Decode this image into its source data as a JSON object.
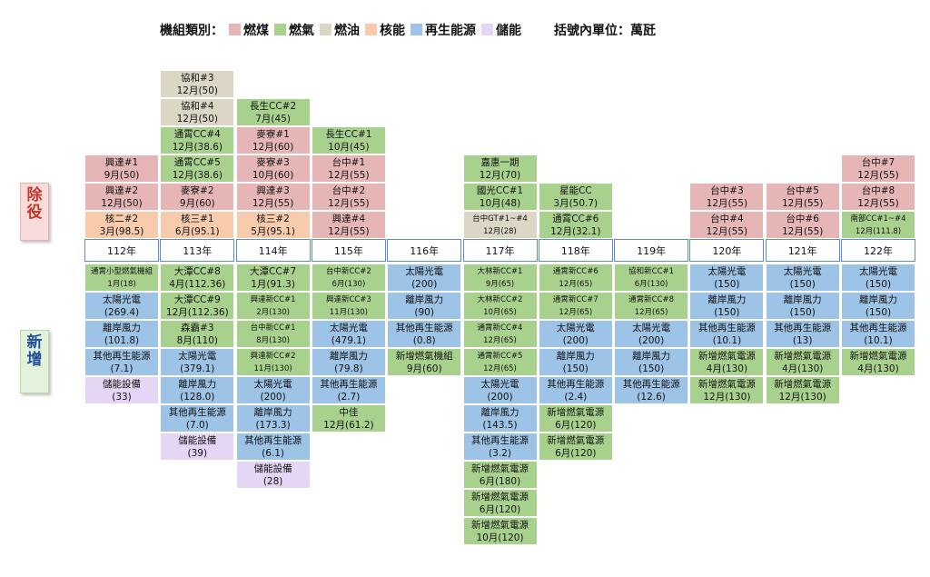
{
  "legend": {
    "title": "機組類別：",
    "items": [
      {
        "key": "coal",
        "label": "燃煤",
        "color": "#e6b6b6"
      },
      {
        "key": "gas",
        "label": "燃氣",
        "color": "#a9d18e"
      },
      {
        "key": "oil",
        "label": "燃油",
        "color": "#dcd6c6"
      },
      {
        "key": "nuclear",
        "label": "核能",
        "color": "#f8cbad"
      },
      {
        "key": "renewable",
        "label": "再生能源",
        "color": "#9dc3e6"
      },
      {
        "key": "storage",
        "label": "儲能",
        "color": "#e6d6f6"
      }
    ],
    "unit_note": "括號內單位：萬瓩"
  },
  "side_labels": {
    "retire": "除役",
    "new": "新增"
  },
  "years": [
    "112年",
    "113年",
    "114年",
    "115年",
    "116年",
    "117年",
    "118年",
    "119年",
    "120年",
    "121年",
    "122年"
  ],
  "retire": [
    [
      {
        "n": "興達#1",
        "d": "9月(50)",
        "t": "coal"
      },
      {
        "n": "興達#2",
        "d": "12月(50)",
        "t": "coal"
      },
      {
        "n": "核二#2",
        "d": "3月(98.5)",
        "t": "nuclear"
      }
    ],
    [
      {
        "n": "協和#3",
        "d": "12月(50)",
        "t": "oil"
      },
      {
        "n": "協和#4",
        "d": "12月(50)",
        "t": "oil"
      },
      {
        "n": "通霄CC#4",
        "d": "12月(38.6)",
        "t": "gas"
      },
      {
        "n": "通霄CC#5",
        "d": "12月(38.6)",
        "t": "gas"
      },
      {
        "n": "麥寮#2",
        "d": "9月(60)",
        "t": "coal"
      },
      {
        "n": "核三#1",
        "d": "6月(95.1)",
        "t": "nuclear"
      }
    ],
    [
      {
        "n": "長生CC#2",
        "d": "7月(45)",
        "t": "gas"
      },
      {
        "n": "麥寮#1",
        "d": "12月(60)",
        "t": "coal"
      },
      {
        "n": "麥寮#3",
        "d": "10月(60)",
        "t": "coal"
      },
      {
        "n": "興達#3",
        "d": "12月(55)",
        "t": "coal"
      },
      {
        "n": "核三#2",
        "d": "5月(95.1)",
        "t": "nuclear"
      }
    ],
    [
      {
        "n": "長生CC#1",
        "d": "10月(45)",
        "t": "gas"
      },
      {
        "n": "台中#1",
        "d": "12月(55)",
        "t": "coal"
      },
      {
        "n": "台中#2",
        "d": "12月(55)",
        "t": "coal"
      },
      {
        "n": "興達#4",
        "d": "12月(55)",
        "t": "coal"
      }
    ],
    [],
    [
      {
        "n": "嘉惠一期",
        "d": "12月(70)",
        "t": "gas"
      },
      {
        "n": "國光CC#1",
        "d": "10月(48)",
        "t": "gas"
      },
      {
        "n": "台中GT#1~#4",
        "d": "12月(28)",
        "t": "oil"
      }
    ],
    [
      {
        "n": "星能CC",
        "d": "3月(50.7)",
        "t": "gas"
      },
      {
        "n": "通霄CC#6",
        "d": "12月(32.1)",
        "t": "gas"
      }
    ],
    [],
    [
      {
        "n": "台中#3",
        "d": "12月(55)",
        "t": "coal"
      },
      {
        "n": "台中#4",
        "d": "12月(55)",
        "t": "coal"
      }
    ],
    [
      {
        "n": "台中#5",
        "d": "12月(55)",
        "t": "coal"
      },
      {
        "n": "台中#6",
        "d": "12月(55)",
        "t": "coal"
      }
    ],
    [
      {
        "n": "台中#7",
        "d": "12月(55)",
        "t": "coal"
      },
      {
        "n": "台中#8",
        "d": "12月(55)",
        "t": "coal"
      },
      {
        "n": "南部CC#1~#4",
        "d": "12月(111.8)",
        "t": "gas"
      }
    ]
  ],
  "added": [
    [
      {
        "n": "通霄小型燃氣機組",
        "d": "1月(18)",
        "t": "gas"
      },
      {
        "n": "太陽光電",
        "d": "(269.4)",
        "t": "renewable"
      },
      {
        "n": "離岸風力",
        "d": "(101.8)",
        "t": "renewable"
      },
      {
        "n": "其他再生能源",
        "d": "(7.1)",
        "t": "renewable"
      },
      {
        "n": "儲能設備",
        "d": "(33)",
        "t": "storage"
      }
    ],
    [
      {
        "n": "大潭CC#8",
        "d": "4月(112.36)",
        "t": "gas"
      },
      {
        "n": "大潭CC#9",
        "d": "12月(112.36)",
        "t": "gas"
      },
      {
        "n": "森霸#3",
        "d": "8月(110)",
        "t": "gas"
      },
      {
        "n": "太陽光電",
        "d": "(379.1)",
        "t": "renewable"
      },
      {
        "n": "離岸風力",
        "d": "(128.0)",
        "t": "renewable"
      },
      {
        "n": "其他再生能源",
        "d": "(7.0)",
        "t": "renewable"
      },
      {
        "n": "儲能設備",
        "d": "(39)",
        "t": "storage"
      }
    ],
    [
      {
        "n": "大潭CC#7",
        "d": "1月(91.3)",
        "t": "gas"
      },
      {
        "n": "興達新CC#1",
        "d": "2月(130)",
        "t": "gas"
      },
      {
        "n": "台中新CC#1",
        "d": "8月(130)",
        "t": "gas"
      },
      {
        "n": "興達新CC#2",
        "d": "11月(130)",
        "t": "gas"
      },
      {
        "n": "太陽光電",
        "d": "(200)",
        "t": "renewable"
      },
      {
        "n": "離岸風力",
        "d": "(173.3)",
        "t": "renewable"
      },
      {
        "n": "其他再生能源",
        "d": "(6.1)",
        "t": "renewable"
      },
      {
        "n": "儲能設備",
        "d": "(28)",
        "t": "storage"
      }
    ],
    [
      {
        "n": "台中新CC#2",
        "d": "6月(130)",
        "t": "gas"
      },
      {
        "n": "興達新CC#3",
        "d": "11月(130)",
        "t": "gas"
      },
      {
        "n": "太陽光電",
        "d": "(479.1)",
        "t": "renewable"
      },
      {
        "n": "離岸風力",
        "d": "(79.8)",
        "t": "renewable"
      },
      {
        "n": "其他再生能源",
        "d": "(2.7)",
        "t": "renewable"
      },
      {
        "n": "中佳",
        "d": "12月(61.2)",
        "t": "gas"
      }
    ],
    [
      {
        "n": "太陽光電",
        "d": "(200)",
        "t": "renewable"
      },
      {
        "n": "離岸風力",
        "d": "(90)",
        "t": "renewable"
      },
      {
        "n": "其他再生能源",
        "d": "(0.8)",
        "t": "renewable"
      },
      {
        "n": "新增燃氣機組",
        "d": "9月(60)",
        "t": "gas"
      }
    ],
    [
      {
        "n": "大林新CC#1",
        "d": "9月(65)",
        "t": "gas"
      },
      {
        "n": "大林新CC#2",
        "d": "10月(65)",
        "t": "gas"
      },
      {
        "n": "通霄新CC#4",
        "d": "12月(65)",
        "t": "gas"
      },
      {
        "n": "通霄新CC#5",
        "d": "12月(65)",
        "t": "gas"
      },
      {
        "n": "太陽光電",
        "d": "(200)",
        "t": "renewable"
      },
      {
        "n": "離岸風力",
        "d": "(143.5)",
        "t": "renewable"
      },
      {
        "n": "其他再生能源",
        "d": "(3.2)",
        "t": "renewable"
      },
      {
        "n": "新增燃氣電源",
        "d": "6月(180)",
        "t": "gas"
      },
      {
        "n": "新增燃氣電源",
        "d": "6月(120)",
        "t": "gas"
      },
      {
        "n": "新增燃氣電源",
        "d": "10月(120)",
        "t": "gas"
      }
    ],
    [
      {
        "n": "通霄新CC#6",
        "d": "12月(65)",
        "t": "gas"
      },
      {
        "n": "通霄新CC#7",
        "d": "12月(65)",
        "t": "gas"
      },
      {
        "n": "太陽光電",
        "d": "(200)",
        "t": "renewable"
      },
      {
        "n": "離岸風力",
        "d": "(150)",
        "t": "renewable"
      },
      {
        "n": "其他再生能源",
        "d": "(2.4)",
        "t": "renewable"
      },
      {
        "n": "新增燃氣電源",
        "d": "6月(120)",
        "t": "gas"
      },
      {
        "n": "新增燃氣電源",
        "d": "6月(120)",
        "t": "gas"
      }
    ],
    [
      {
        "n": "協和新CC#1",
        "d": "6月(130)",
        "t": "gas"
      },
      {
        "n": "通霄新CC#8",
        "d": "12月(65)",
        "t": "gas"
      },
      {
        "n": "太陽光電",
        "d": "(200)",
        "t": "renewable"
      },
      {
        "n": "離岸風力",
        "d": "(150)",
        "t": "renewable"
      },
      {
        "n": "其他再生能源",
        "d": "(12.6)",
        "t": "renewable"
      }
    ],
    [
      {
        "n": "太陽光電",
        "d": "(150)",
        "t": "renewable"
      },
      {
        "n": "離岸風力",
        "d": "(150)",
        "t": "renewable"
      },
      {
        "n": "其他再生能源",
        "d": "(10.1)",
        "t": "renewable"
      },
      {
        "n": "新增燃氣電源",
        "d": "4月(130)",
        "t": "gas"
      },
      {
        "n": "新增燃氣電源",
        "d": "12月(130)",
        "t": "gas"
      }
    ],
    [
      {
        "n": "太陽光電",
        "d": "(150)",
        "t": "renewable"
      },
      {
        "n": "離岸風力",
        "d": "(150)",
        "t": "renewable"
      },
      {
        "n": "其他再生能源",
        "d": "(13)",
        "t": "renewable"
      },
      {
        "n": "新增燃氣電源",
        "d": "4月(130)",
        "t": "gas"
      },
      {
        "n": "新增燃氣電源",
        "d": "12月(130)",
        "t": "gas"
      }
    ],
    [
      {
        "n": "太陽光電",
        "d": "(150)",
        "t": "renewable"
      },
      {
        "n": "離岸風力",
        "d": "(150)",
        "t": "renewable"
      },
      {
        "n": "其他再生能源",
        "d": "(10.1)",
        "t": "renewable"
      },
      {
        "n": "新增燃氣電源",
        "d": "4月(130)",
        "t": "gas"
      }
    ]
  ]
}
